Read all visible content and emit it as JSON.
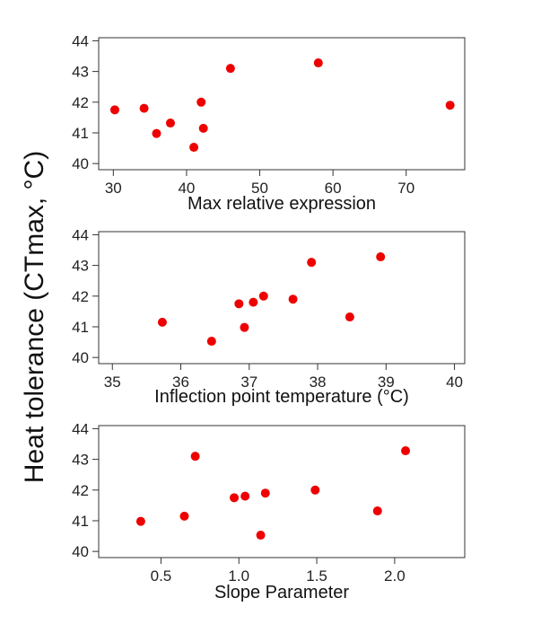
{
  "y_title": "Heat tolerance (CTmax, °C)",
  "chart_data": [
    {
      "type": "scatter",
      "xlabel": "Max relative expression",
      "xlim": [
        28,
        78
      ],
      "ylim": [
        39.8,
        44.1
      ],
      "xticks": [
        30,
        40,
        50,
        60,
        70
      ],
      "xtick_labels": [
        "30",
        "40",
        "50",
        "60",
        "70"
      ],
      "yticks": [
        40,
        41,
        42,
        43,
        44
      ],
      "ytick_labels": [
        "40",
        "41",
        "42",
        "43",
        "44"
      ],
      "point_color": "#ee0000",
      "x": [
        30.2,
        34.2,
        35.9,
        37.8,
        41.0,
        42.0,
        42.3,
        46.0,
        58.0,
        76.0
      ],
      "y": [
        41.75,
        41.8,
        40.98,
        41.32,
        40.53,
        42.0,
        41.15,
        43.1,
        43.28,
        41.9
      ]
    },
    {
      "type": "scatter",
      "xlabel": "Inflection point temperature (°C)",
      "xlim": [
        34.8,
        40.15
      ],
      "ylim": [
        39.8,
        44.1
      ],
      "xticks": [
        35,
        36,
        37,
        38,
        39,
        40
      ],
      "xtick_labels": [
        "35",
        "36",
        "37",
        "38",
        "39",
        "40"
      ],
      "yticks": [
        40,
        41,
        42,
        43,
        44
      ],
      "ytick_labels": [
        "40",
        "41",
        "42",
        "43",
        "44"
      ],
      "point_color": "#ee0000",
      "x": [
        35.73,
        36.45,
        36.85,
        36.93,
        37.06,
        37.21,
        37.64,
        37.91,
        38.47,
        38.92
      ],
      "y": [
        41.15,
        40.53,
        41.75,
        40.98,
        41.8,
        42.0,
        41.9,
        43.1,
        41.32,
        43.28
      ]
    },
    {
      "type": "scatter",
      "xlabel": "Slope Parameter",
      "xlim": [
        0.1,
        2.45
      ],
      "ylim": [
        39.8,
        44.1
      ],
      "xticks": [
        0.5,
        1.0,
        1.5,
        2.0
      ],
      "xtick_labels": [
        "0.5",
        "1.0",
        "1.5",
        "2.0"
      ],
      "yticks": [
        40,
        41,
        42,
        43,
        44
      ],
      "ytick_labels": [
        "40",
        "41",
        "42",
        "43",
        "44"
      ],
      "point_color": "#ee0000",
      "x": [
        0.37,
        0.65,
        0.72,
        0.97,
        1.04,
        1.14,
        1.17,
        1.49,
        1.89,
        2.07
      ],
      "y": [
        40.98,
        41.15,
        43.1,
        41.75,
        41.8,
        40.53,
        41.9,
        42.0,
        41.32,
        43.28
      ]
    }
  ]
}
